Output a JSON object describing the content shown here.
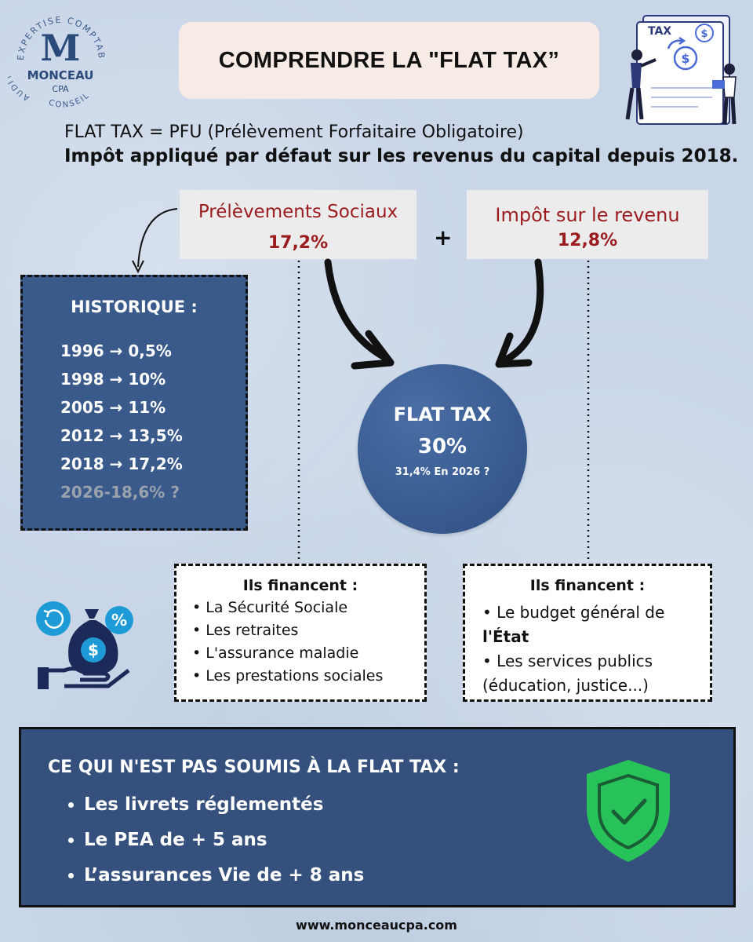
{
  "logo": {
    "ring_text_top": "EXPERTISE COMPTABLE",
    "ring_text_left": "AUDIT",
    "ring_text_bottom": "CONSEIL",
    "letter": "M",
    "name": "MONCEAU",
    "sub": "CPA"
  },
  "title": "COMPRENDRE LA \"FLAT TAX”",
  "illustration": {
    "label": "TAX",
    "icon": "tax-document-illustration"
  },
  "intro": {
    "line1": "FLAT TAX = PFU (Prélèvement Forfaitaire Obligatoire)",
    "line2": "Impôt appliqué par défaut sur les revenus du capital depuis 2018."
  },
  "prelevements": {
    "label": "Prélèvements Sociaux",
    "rate": "17,2%"
  },
  "plus": "+",
  "impot": {
    "label": "Impôt sur le revenu",
    "rate": "12,8%"
  },
  "historique": {
    "title": "HISTORIQUE :",
    "items": [
      "1996 → 0,5%",
      "1998 → 10%",
      "2005 → 11%",
      "2012 → 13,5%",
      "2018 → 17,2%"
    ],
    "future": "2026-18,6% ?"
  },
  "flat_tax": {
    "title": "FLAT TAX",
    "rate": "30%",
    "note": "31,4% En 2026 ?"
  },
  "finance_left": {
    "title": "Ils financent :",
    "items": [
      "• La Sécurité Sociale",
      "• Les retraites",
      "• L'assurance maladie",
      "• Les prestations sociales"
    ]
  },
  "finance_right": {
    "title": "Ils financent :",
    "line1": "• Le budget général de",
    "line2": "l'État",
    "line3": "• Les services publics",
    "line4": "(éducation, justice...)"
  },
  "exclusions": {
    "title": "CE QUI N'EST PAS SOUMIS À LA FLAT TAX :",
    "items": [
      "Les livrets réglementés",
      "Le PEA de + 5 ans",
      "L’assurances Vie de + 8 ans"
    ]
  },
  "footer": "www.monceaucpa.com",
  "colors": {
    "background": "#c9d6e8",
    "navy": "#36507d",
    "accent_red": "#9b1c1f",
    "shield_green": "#27c35a",
    "icon_blue": "#1e9bd7"
  }
}
